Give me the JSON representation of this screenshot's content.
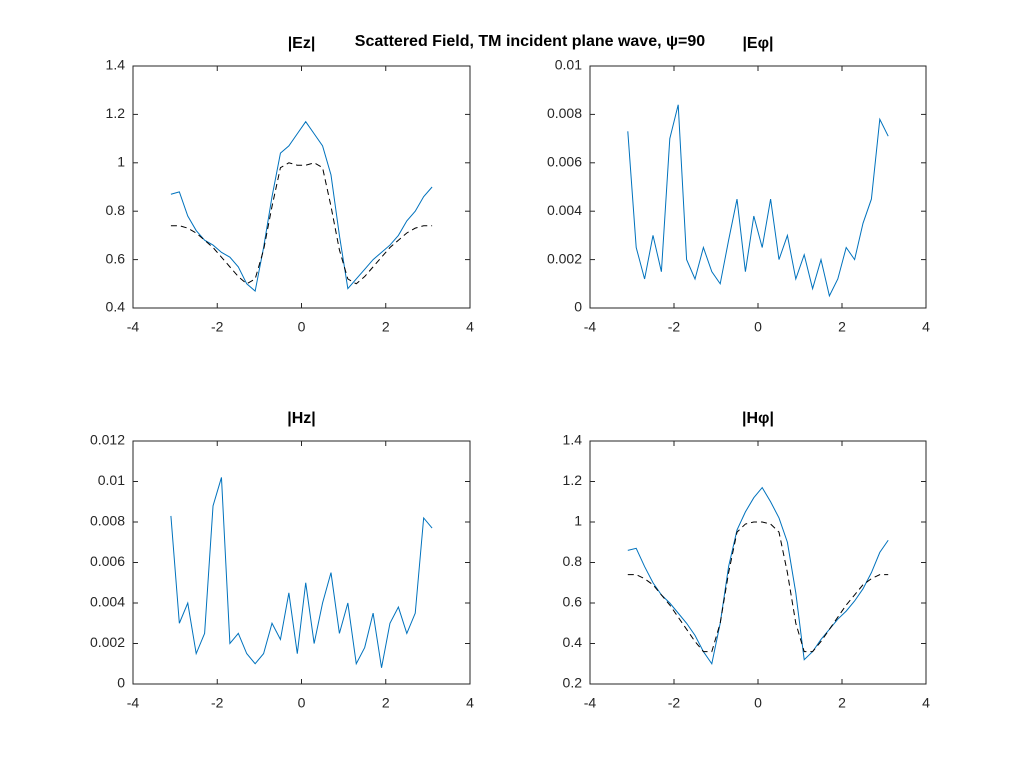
{
  "title": "Scattered Field, TM incident plane wave, ψ=90",
  "chart_data": [
    {
      "type": "line",
      "title": "|Ez|",
      "x": [
        -3.1,
        -2.9,
        -2.7,
        -2.5,
        -2.3,
        -2.1,
        -1.9,
        -1.7,
        -1.5,
        -1.3,
        -1.1,
        -0.9,
        -0.7,
        -0.5,
        -0.3,
        -0.1,
        0.1,
        0.3,
        0.5,
        0.7,
        0.9,
        1.1,
        1.3,
        1.5,
        1.7,
        1.9,
        2.1,
        2.3,
        2.5,
        2.7,
        2.9,
        3.1
      ],
      "series": [
        {
          "color": "#0072bd",
          "values": [
            0.87,
            0.88,
            0.78,
            0.72,
            0.68,
            0.66,
            0.63,
            0.61,
            0.57,
            0.5,
            0.47,
            0.65,
            0.86,
            1.04,
            1.07,
            1.12,
            1.17,
            1.12,
            1.07,
            0.95,
            0.7,
            0.48,
            0.52,
            0.56,
            0.6,
            0.63,
            0.66,
            0.7,
            0.76,
            0.8,
            0.86,
            0.9
          ]
        },
        {
          "color": "#000000",
          "dashed": true,
          "values": [
            0.74,
            0.74,
            0.73,
            0.71,
            0.68,
            0.65,
            0.61,
            0.57,
            0.53,
            0.5,
            0.52,
            0.64,
            0.82,
            0.98,
            1.0,
            0.99,
            0.99,
            1.0,
            0.98,
            0.82,
            0.64,
            0.52,
            0.5,
            0.53,
            0.57,
            0.61,
            0.65,
            0.68,
            0.71,
            0.73,
            0.74,
            0.74
          ]
        }
      ],
      "xlim": [
        -4,
        4
      ],
      "xticks": [
        -4,
        -2,
        0,
        2,
        4
      ],
      "ylim": [
        0.4,
        1.4
      ],
      "yticks": [
        0.4,
        0.6,
        0.8,
        1,
        1.2,
        1.4
      ]
    },
    {
      "type": "line",
      "title": "|Eφ|",
      "x": [
        -3.1,
        -2.9,
        -2.7,
        -2.5,
        -2.3,
        -2.1,
        -1.9,
        -1.7,
        -1.5,
        -1.3,
        -1.1,
        -0.9,
        -0.7,
        -0.5,
        -0.3,
        -0.1,
        0.1,
        0.3,
        0.5,
        0.7,
        0.9,
        1.1,
        1.3,
        1.5,
        1.7,
        1.9,
        2.1,
        2.3,
        2.5,
        2.7,
        2.9,
        3.1
      ],
      "series": [
        {
          "color": "#0072bd",
          "values": [
            0.0073,
            0.0025,
            0.0012,
            0.003,
            0.0015,
            0.007,
            0.0084,
            0.002,
            0.0012,
            0.0025,
            0.0015,
            0.001,
            0.0028,
            0.0045,
            0.0015,
            0.0038,
            0.0025,
            0.0045,
            0.002,
            0.003,
            0.0012,
            0.0022,
            0.0008,
            0.002,
            0.0005,
            0.0012,
            0.0025,
            0.002,
            0.0035,
            0.0045,
            0.0078,
            0.0071
          ]
        }
      ],
      "xlim": [
        -4,
        4
      ],
      "xticks": [
        -4,
        -2,
        0,
        2,
        4
      ],
      "ylim": [
        0,
        0.01
      ],
      "yticks": [
        0,
        0.002,
        0.004,
        0.006,
        0.008,
        0.01
      ]
    },
    {
      "type": "line",
      "title": "|Hz|",
      "x": [
        -3.1,
        -2.9,
        -2.7,
        -2.5,
        -2.3,
        -2.1,
        -1.9,
        -1.7,
        -1.5,
        -1.3,
        -1.1,
        -0.9,
        -0.7,
        -0.5,
        -0.3,
        -0.1,
        0.1,
        0.3,
        0.5,
        0.7,
        0.9,
        1.1,
        1.3,
        1.5,
        1.7,
        1.9,
        2.1,
        2.3,
        2.5,
        2.7,
        2.9,
        3.1
      ],
      "series": [
        {
          "color": "#0072bd",
          "values": [
            0.0083,
            0.003,
            0.004,
            0.0015,
            0.0025,
            0.0088,
            0.0102,
            0.002,
            0.0025,
            0.0015,
            0.001,
            0.0015,
            0.003,
            0.0022,
            0.0045,
            0.0015,
            0.005,
            0.002,
            0.004,
            0.0055,
            0.0025,
            0.004,
            0.001,
            0.0018,
            0.0035,
            0.0008,
            0.003,
            0.0038,
            0.0025,
            0.0035,
            0.0082,
            0.0077
          ]
        }
      ],
      "xlim": [
        -4,
        4
      ],
      "xticks": [
        -4,
        -2,
        0,
        2,
        4
      ],
      "ylim": [
        0,
        0.012
      ],
      "yticks": [
        0,
        0.002,
        0.004,
        0.006,
        0.008,
        0.01,
        0.012
      ]
    },
    {
      "type": "line",
      "title": "|Hφ|",
      "x": [
        -3.1,
        -2.9,
        -2.7,
        -2.5,
        -2.3,
        -2.1,
        -1.9,
        -1.7,
        -1.5,
        -1.3,
        -1.1,
        -0.9,
        -0.7,
        -0.5,
        -0.3,
        -0.1,
        0.1,
        0.3,
        0.5,
        0.7,
        0.9,
        1.1,
        1.3,
        1.5,
        1.7,
        1.9,
        2.1,
        2.3,
        2.5,
        2.7,
        2.9,
        3.1
      ],
      "series": [
        {
          "color": "#0072bd",
          "values": [
            0.86,
            0.87,
            0.78,
            0.7,
            0.64,
            0.6,
            0.55,
            0.5,
            0.44,
            0.36,
            0.3,
            0.5,
            0.78,
            0.96,
            1.05,
            1.12,
            1.17,
            1.1,
            1.02,
            0.9,
            0.65,
            0.32,
            0.36,
            0.42,
            0.47,
            0.52,
            0.56,
            0.61,
            0.67,
            0.75,
            0.85,
            0.91
          ]
        },
        {
          "color": "#000000",
          "dashed": true,
          "values": [
            0.74,
            0.74,
            0.72,
            0.69,
            0.64,
            0.59,
            0.53,
            0.47,
            0.41,
            0.36,
            0.36,
            0.5,
            0.75,
            0.95,
            0.99,
            1.0,
            1.0,
            0.99,
            0.95,
            0.75,
            0.5,
            0.36,
            0.36,
            0.41,
            0.47,
            0.53,
            0.59,
            0.64,
            0.69,
            0.72,
            0.74,
            0.74
          ]
        }
      ],
      "xlim": [
        -4,
        4
      ],
      "xticks": [
        -4,
        -2,
        0,
        2,
        4
      ],
      "ylim": [
        0.2,
        1.4
      ],
      "yticks": [
        0.2,
        0.4,
        0.6,
        0.8,
        1,
        1.2,
        1.4
      ]
    }
  ]
}
